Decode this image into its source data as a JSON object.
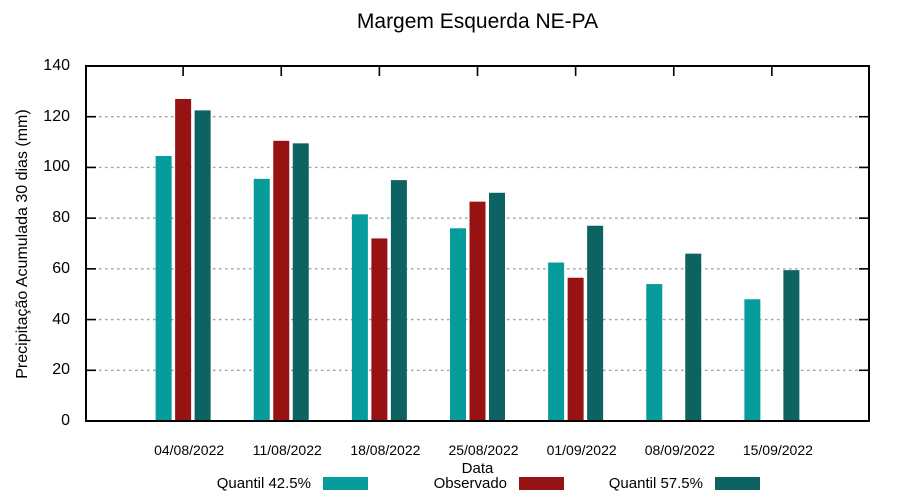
{
  "title": "Margem Esquerda NE-PA",
  "colors": {
    "quantil_425": "#069C9C",
    "observado": "#971212",
    "quantil_575": "#0D6361",
    "grid": "#A0A0A0",
    "axis": "#000000",
    "background": "#FFFFFF"
  },
  "chart_data": {
    "type": "bar",
    "title": "Margem Esquerda NE-PA",
    "xlabel": "Data",
    "ylabel": "Precipitação Acumulada 30 dias (mm)",
    "categories": [
      "04/08/2022",
      "11/08/2022",
      "18/08/2022",
      "25/08/2022",
      "01/09/2022",
      "08/09/2022",
      "15/09/2022"
    ],
    "series": [
      {
        "name": "Quantil 42.5%",
        "color": "#069C9C",
        "values": [
          104.5,
          95.5,
          81.5,
          76,
          62.5,
          54,
          48
        ]
      },
      {
        "name": "Observado",
        "color": "#971212",
        "values": [
          127,
          110.5,
          72,
          86.5,
          56.5,
          null,
          null
        ]
      },
      {
        "name": "Quantil 57.5%",
        "color": "#0D6361",
        "values": [
          122.5,
          109.5,
          95,
          90,
          77,
          66,
          59.5
        ]
      }
    ],
    "ylim": [
      0,
      140
    ],
    "yticks": [
      0,
      20,
      40,
      60,
      80,
      100,
      120,
      140
    ],
    "grid": true,
    "legend_position": "bottom"
  }
}
